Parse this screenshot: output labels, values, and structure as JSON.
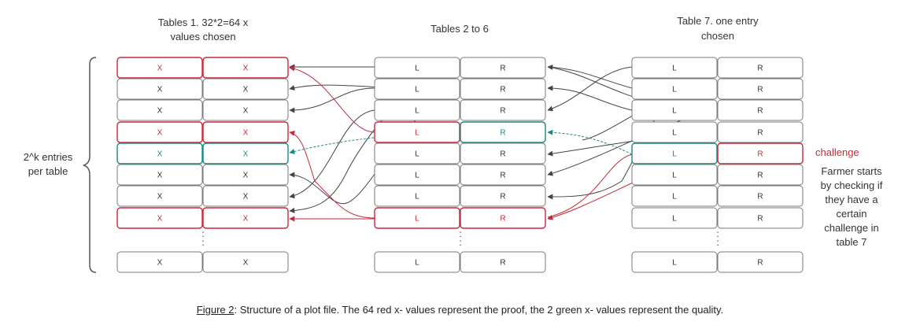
{
  "headers": {
    "table1_line1": "Tables 1. 32*2=64 x",
    "table1_line2": "values chosen",
    "tables2to6": "Tables 2 to 6",
    "table7_line1": "Table 7. one entry",
    "table7_line2": "chosen"
  },
  "side_label": {
    "line1": "2^k entries",
    "line2": "per table"
  },
  "challenge_label": "challenge",
  "farmer_note": [
    "Farmer starts",
    "by checking if",
    "they have a",
    "certain",
    "challenge in",
    "table 7"
  ],
  "cell_labels": {
    "x": "X",
    "l": "L",
    "r": "R"
  },
  "ellipsis": ":",
  "tables": {
    "table1_row_states": [
      "red",
      "normal",
      "normal",
      "red",
      "green",
      "normal",
      "normal",
      "red"
    ],
    "tables2to6_row_states": [
      "normal",
      "normal",
      "normal",
      "mixed",
      "normal",
      "normal",
      "normal",
      "red"
    ],
    "table7_row_states": [
      "normal",
      "normal",
      "normal",
      "normal",
      "challenge",
      "normal",
      "normal",
      "normal"
    ]
  },
  "colors": {
    "red": "#c62a3a",
    "green": "#1a8a7e",
    "gray": "#555555"
  },
  "caption": {
    "figure_label": "Figure 2",
    "text": ": Structure of a plot file. The 64 red x- values represent the proof, the 2 green x- values represent the quality."
  }
}
